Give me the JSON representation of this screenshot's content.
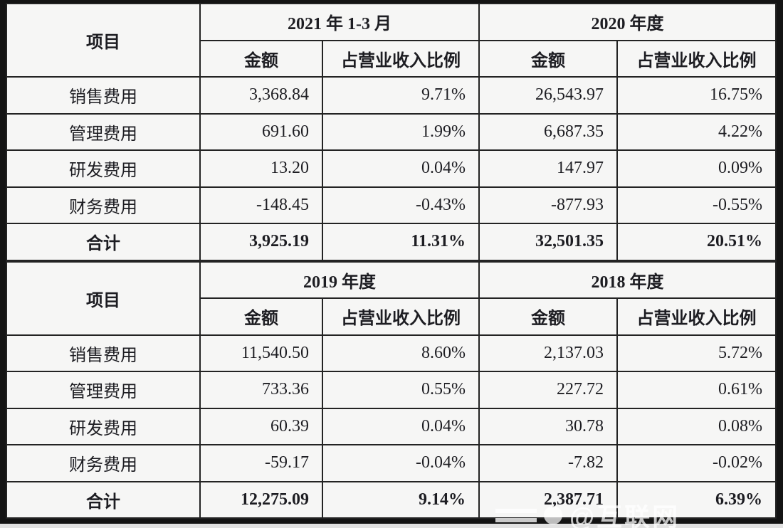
{
  "watermark": {
    "text": "@互联网"
  },
  "tables": [
    {
      "item_header": "项目",
      "groups": [
        {
          "period": "2021 年 1-3 月",
          "amount_label": "金额",
          "ratio_label": "占营业收入比例"
        },
        {
          "period": "2020 年度",
          "amount_label": "金额",
          "ratio_label": "占营业收入比例"
        }
      ],
      "rows": [
        {
          "label": "销售费用",
          "cells": [
            "3,368.84",
            "9.71%",
            "26,543.97",
            "16.75%"
          ]
        },
        {
          "label": "管理费用",
          "cells": [
            "691.60",
            "1.99%",
            "6,687.35",
            "4.22%"
          ]
        },
        {
          "label": "研发费用",
          "cells": [
            "13.20",
            "0.04%",
            "147.97",
            "0.09%"
          ]
        },
        {
          "label": "财务费用",
          "cells": [
            "-148.45",
            "-0.43%",
            "-877.93",
            "-0.55%"
          ]
        },
        {
          "label": "合计",
          "cells": [
            "3,925.19",
            "11.31%",
            "32,501.35",
            "20.51%"
          ]
        }
      ]
    },
    {
      "item_header": "项目",
      "groups": [
        {
          "period": "2019 年度",
          "amount_label": "金额",
          "ratio_label": "占营业收入比例"
        },
        {
          "period": "2018 年度",
          "amount_label": "金额",
          "ratio_label": "占营业收入比例"
        }
      ],
      "rows": [
        {
          "label": "销售费用",
          "cells": [
            "11,540.50",
            "8.60%",
            "2,137.03",
            "5.72%"
          ]
        },
        {
          "label": "管理费用",
          "cells": [
            "733.36",
            "0.55%",
            "227.72",
            "0.61%"
          ]
        },
        {
          "label": "研发费用",
          "cells": [
            "60.39",
            "0.04%",
            "30.78",
            "0.08%"
          ]
        },
        {
          "label": "财务费用",
          "cells": [
            "-59.17",
            "-0.04%",
            "-7.82",
            "-0.02%"
          ]
        },
        {
          "label": "合计",
          "cells": [
            "12,275.09",
            "9.14%",
            "2,387.71",
            "6.39%"
          ]
        }
      ]
    }
  ]
}
